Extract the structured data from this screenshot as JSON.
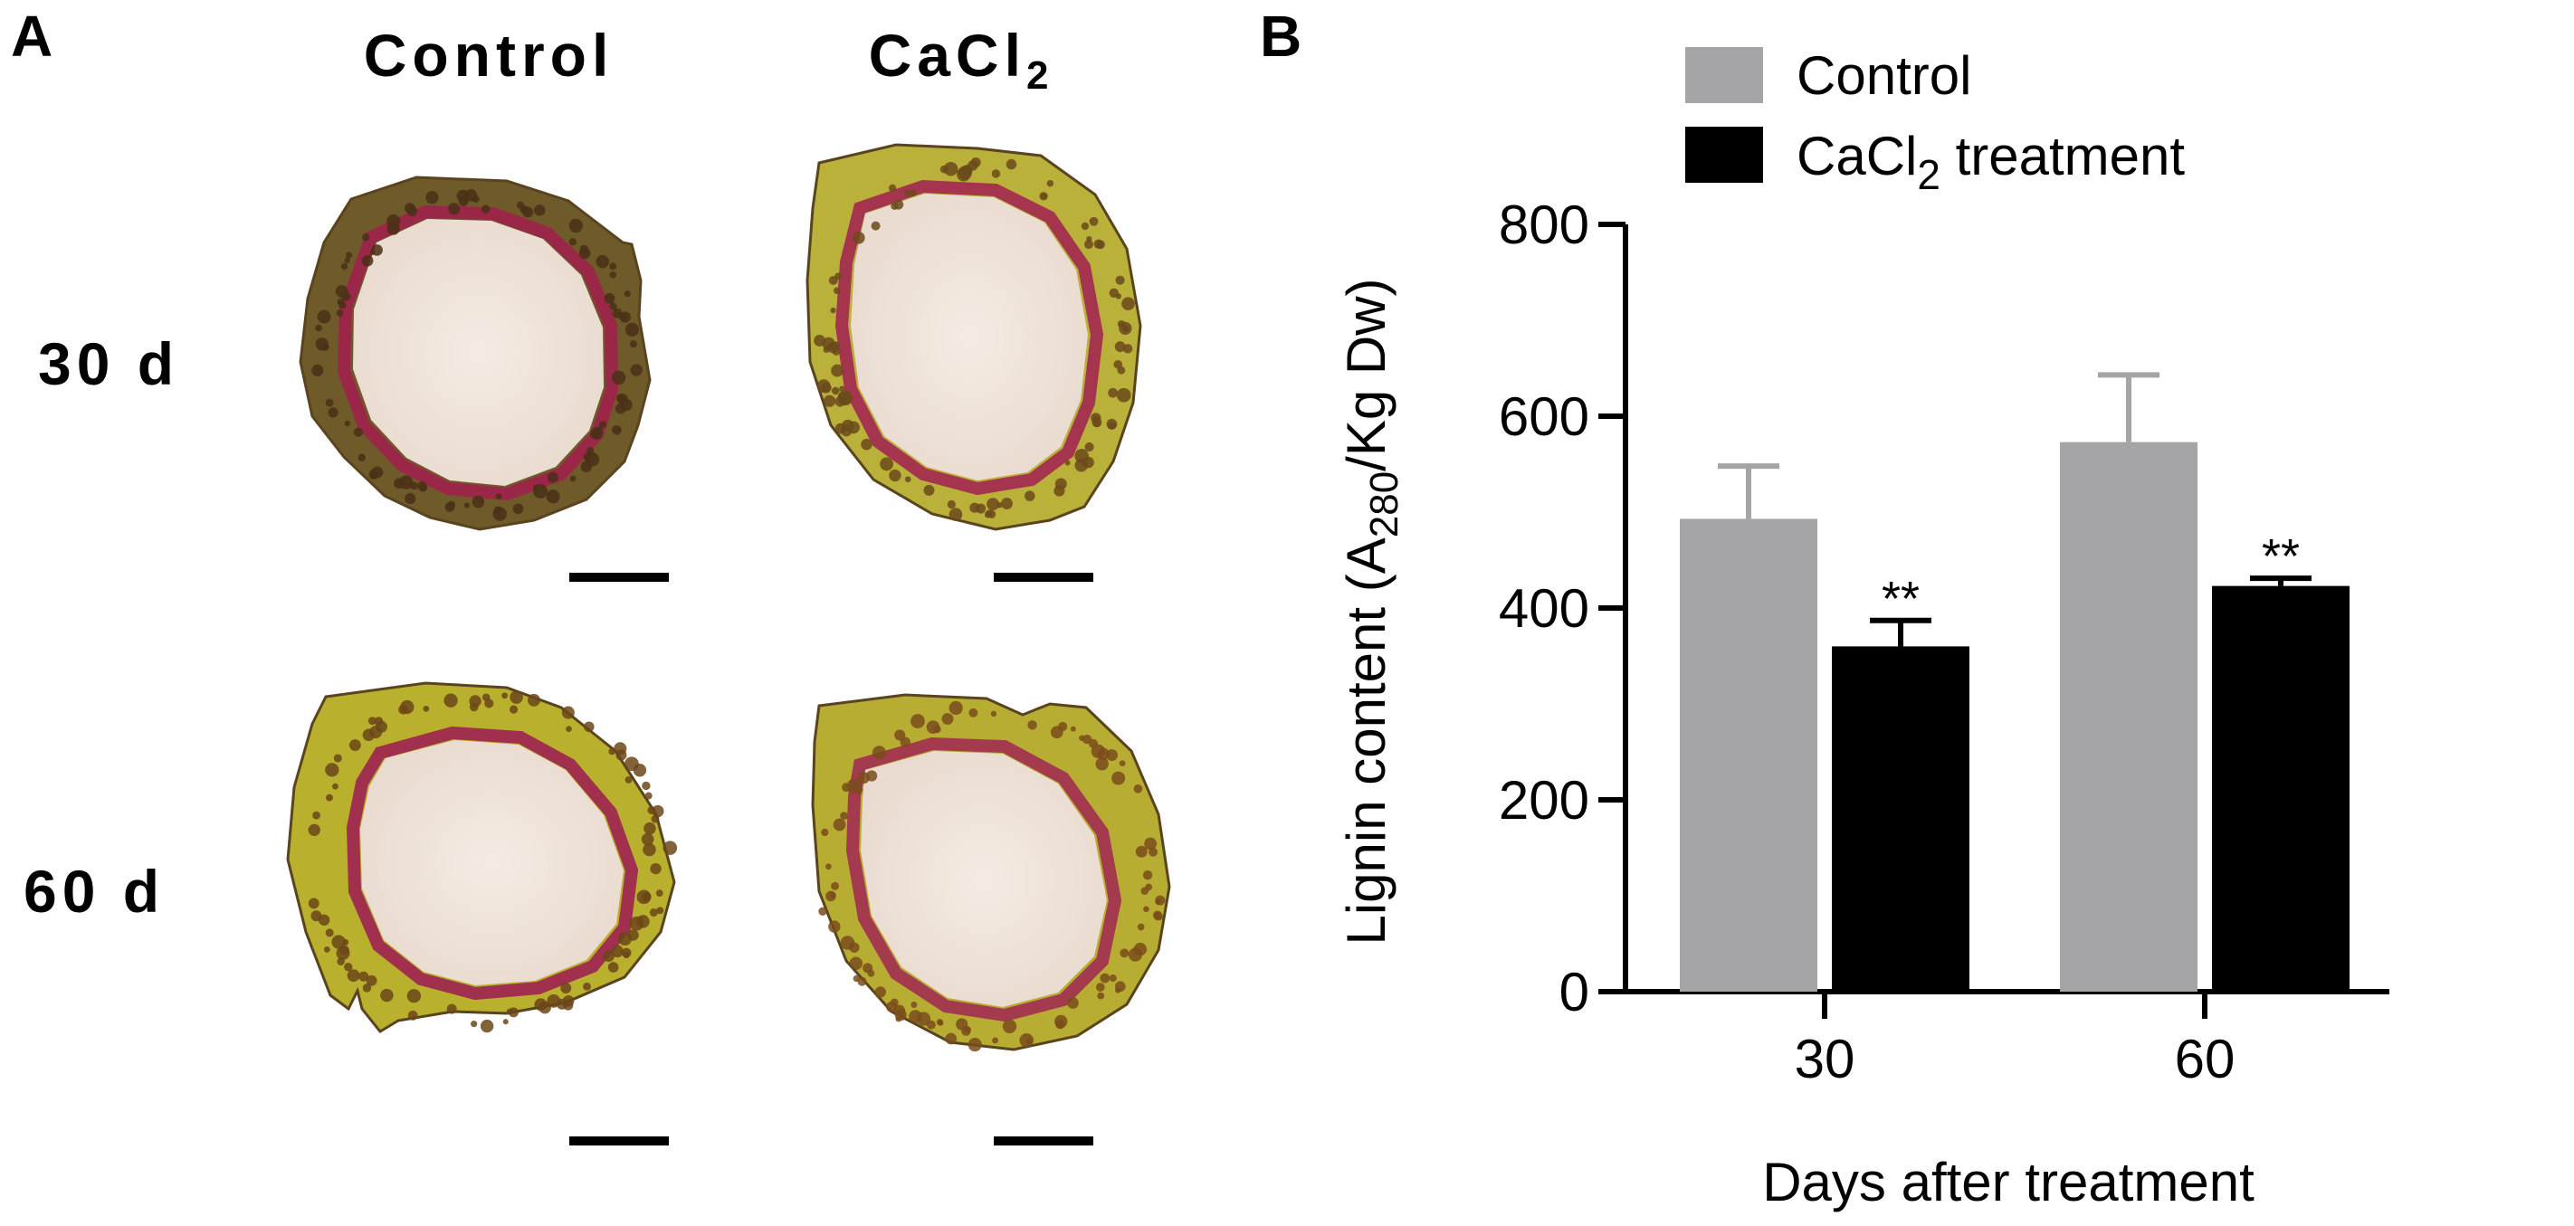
{
  "panel_a": {
    "letter": "A",
    "columns": [
      {
        "name": "Control",
        "sub": ""
      },
      {
        "name": "CaCl",
        "sub": "2"
      }
    ],
    "rows": [
      "30 d",
      "60 d"
    ],
    "images": [
      {
        "row": "30 d",
        "col": "Control",
        "rind": "#6f5a2a",
        "ring": "#9b2748",
        "spots": "#4a3016"
      },
      {
        "row": "30 d",
        "col": "CaCl2",
        "rind": "#b9b13a",
        "ring": "#a5344f",
        "spots": "#6b4a1c"
      },
      {
        "row": "60 d",
        "col": "Control",
        "rind": "#b9b02e",
        "ring": "#a0304d",
        "spots": "#6b4718"
      },
      {
        "row": "60 d",
        "col": "CaCl2",
        "rind": "#b6ad32",
        "ring": "#a33a4d",
        "spots": "#7a4c1c"
      }
    ],
    "flesh_color": "#f1e7dc"
  },
  "panel_b": {
    "letter": "B",
    "colors": {
      "control": "#a5a5a8",
      "treatment": "#000000"
    }
  },
  "chart_data": {
    "type": "bar",
    "title": "",
    "categories": [
      "30",
      "60"
    ],
    "series": [
      {
        "name": "Control",
        "name_main": "Control",
        "name_sub": "",
        "name_tail": "",
        "values": [
          493,
          573
        ],
        "errors": [
          55,
          70
        ],
        "sig": [
          "",
          ""
        ]
      },
      {
        "name": "CaCl2 treatment",
        "name_main": "CaCl",
        "name_sub": "2",
        "name_tail": " treatment",
        "values": [
          360,
          423
        ],
        "errors": [
          27,
          8
        ],
        "sig": [
          "**",
          "**"
        ]
      }
    ],
    "xlabel": "Days after treatment",
    "ylabel": {
      "pre": "Lignin content (A",
      "sub": "280",
      "post": "/Kg Dw)"
    },
    "ylim": [
      0,
      800
    ],
    "yticks": [
      0,
      200,
      400,
      600,
      800
    ],
    "legend_position": "top-left"
  }
}
